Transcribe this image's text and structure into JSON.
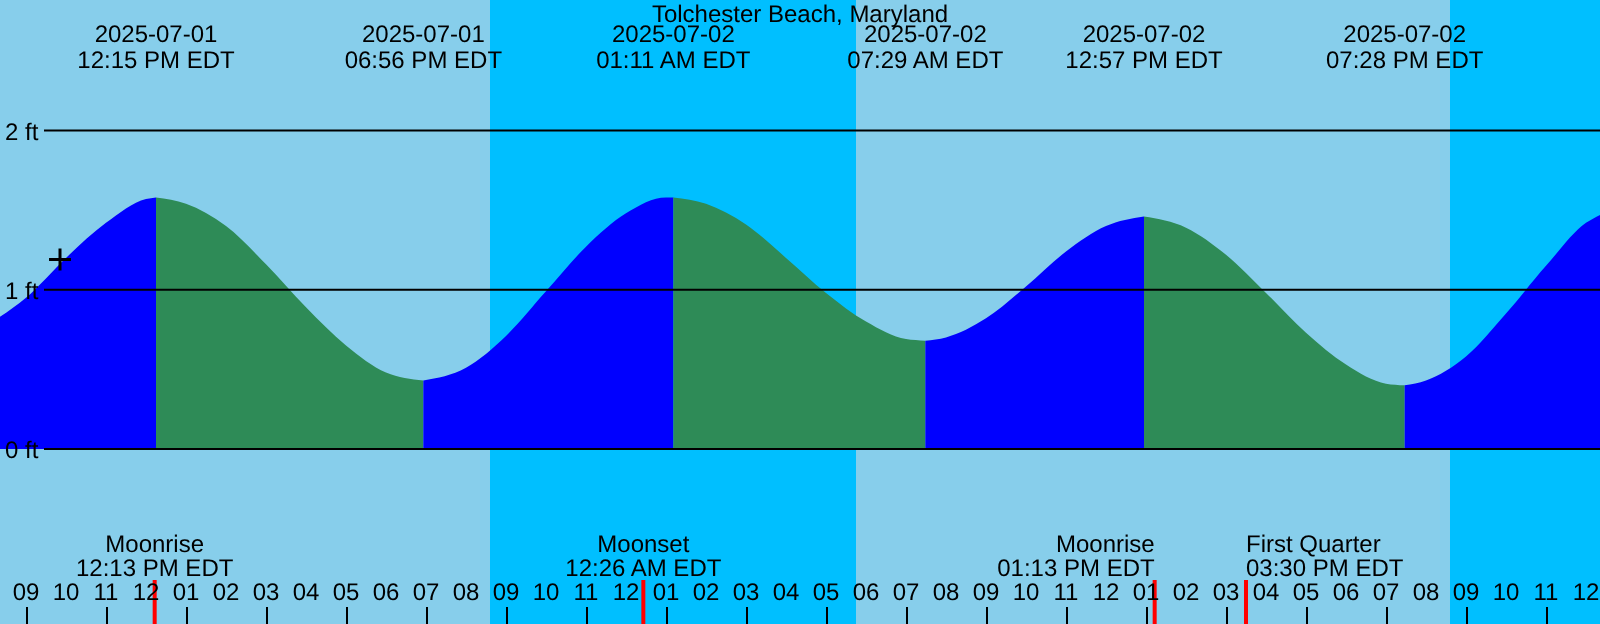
{
  "chart_data": {
    "type": "area",
    "title": "Tolchester Beach, Maryland",
    "series": [
      {
        "color": "#0000ff",
        "x": [
          "2025-07-01T08:21",
          "2025-07-01T09:00",
          "2025-07-01T10:00",
          "2025-07-01T11:00",
          "2025-07-01T12:00",
          "2025-07-01T12:15"
        ],
        "values": [
          0.83,
          0.95,
          1.2,
          1.42,
          1.57,
          1.58
        ]
      },
      {
        "color": "#2e8b57",
        "x": [
          "2025-07-01T12:15",
          "2025-07-01T13:00",
          "2025-07-01T14:00",
          "2025-07-01T15:00",
          "2025-07-01T16:00",
          "2025-07-01T17:00",
          "2025-07-01T18:00",
          "2025-07-01T18:56"
        ],
        "values": [
          1.58,
          1.54,
          1.4,
          1.16,
          0.89,
          0.65,
          0.48,
          0.43
        ]
      },
      {
        "color": "#0000ff",
        "x": [
          "2025-07-01T18:56",
          "2025-07-01T20:00",
          "2025-07-01T21:00",
          "2025-07-01T22:00",
          "2025-07-01T23:00",
          "2025-07-02T00:00",
          "2025-07-02T01:00",
          "2025-07-02T01:11"
        ],
        "values": [
          0.43,
          0.51,
          0.71,
          0.99,
          1.27,
          1.48,
          1.58,
          1.58
        ]
      },
      {
        "color": "#2e8b57",
        "x": [
          "2025-07-02T01:11",
          "2025-07-02T02:00",
          "2025-07-02T03:00",
          "2025-07-02T04:00",
          "2025-07-02T05:00",
          "2025-07-02T06:00",
          "2025-07-02T07:00",
          "2025-07-02T07:29"
        ],
        "values": [
          1.58,
          1.54,
          1.41,
          1.2,
          0.98,
          0.8,
          0.69,
          0.68
        ]
      },
      {
        "color": "#0000ff",
        "x": [
          "2025-07-02T07:29",
          "2025-07-02T08:00",
          "2025-07-02T09:00",
          "2025-07-02T10:00",
          "2025-07-02T11:00",
          "2025-07-02T12:00",
          "2025-07-02T12:57"
        ],
        "values": [
          0.68,
          0.7,
          0.82,
          1.02,
          1.24,
          1.4,
          1.46
        ]
      },
      {
        "color": "#2e8b57",
        "x": [
          "2025-07-02T12:57",
          "2025-07-02T14:00",
          "2025-07-02T15:00",
          "2025-07-02T16:00",
          "2025-07-02T17:00",
          "2025-07-02T18:00",
          "2025-07-02T19:00",
          "2025-07-02T19:28"
        ],
        "values": [
          1.46,
          1.39,
          1.22,
          0.98,
          0.73,
          0.53,
          0.41,
          0.4
        ]
      },
      {
        "color": "#0000ff",
        "x": [
          "2025-07-02T19:28",
          "2025-07-02T20:00",
          "2025-07-02T21:00",
          "2025-07-02T22:00",
          "2025-07-02T23:00",
          "2025-07-03T00:00",
          "2025-07-03T00:21"
        ],
        "values": [
          0.4,
          0.43,
          0.58,
          0.85,
          1.15,
          1.42,
          1.47
        ]
      },
      {
        "type": "scatter",
        "color": "#000000",
        "marker": "cross",
        "x": [
          "2025-07-01T09:51"
        ],
        "values": [
          1.19
        ]
      }
    ],
    "xlim": [
      "2025-07-01T08:21",
      "2025-07-03T00:21"
    ],
    "ylim": [
      -1.1,
      2.82
    ],
    "yticks": [
      {
        "value": 0,
        "label": "0 ft"
      },
      {
        "value": 1,
        "label": "1 ft"
      },
      {
        "value": 2,
        "label": "2 ft"
      }
    ],
    "xticks": [
      {
        "value": "2025-07-01T09:00",
        "label": "09"
      },
      {
        "value": "2025-07-01T10:00",
        "label": "10"
      },
      {
        "value": "2025-07-01T11:00",
        "label": "11"
      },
      {
        "value": "2025-07-01T12:00",
        "label": "12"
      },
      {
        "value": "2025-07-01T13:00",
        "label": "01"
      },
      {
        "value": "2025-07-01T14:00",
        "label": "02"
      },
      {
        "value": "2025-07-01T15:00",
        "label": "03"
      },
      {
        "value": "2025-07-01T16:00",
        "label": "04"
      },
      {
        "value": "2025-07-01T17:00",
        "label": "05"
      },
      {
        "value": "2025-07-01T18:00",
        "label": "06"
      },
      {
        "value": "2025-07-01T19:00",
        "label": "07"
      },
      {
        "value": "2025-07-01T20:00",
        "label": "08"
      },
      {
        "value": "2025-07-01T21:00",
        "label": "09"
      },
      {
        "value": "2025-07-01T22:00",
        "label": "10"
      },
      {
        "value": "2025-07-01T23:00",
        "label": "11"
      },
      {
        "value": "2025-07-02T00:00",
        "label": "12"
      },
      {
        "value": "2025-07-02T01:00",
        "label": "01"
      },
      {
        "value": "2025-07-02T02:00",
        "label": "02"
      },
      {
        "value": "2025-07-02T03:00",
        "label": "03"
      },
      {
        "value": "2025-07-02T04:00",
        "label": "04"
      },
      {
        "value": "2025-07-02T05:00",
        "label": "05"
      },
      {
        "value": "2025-07-02T06:00",
        "label": "06"
      },
      {
        "value": "2025-07-02T07:00",
        "label": "07"
      },
      {
        "value": "2025-07-02T08:00",
        "label": "08"
      },
      {
        "value": "2025-07-02T09:00",
        "label": "09"
      },
      {
        "value": "2025-07-02T10:00",
        "label": "10"
      },
      {
        "value": "2025-07-02T11:00",
        "label": "11"
      },
      {
        "value": "2025-07-02T12:00",
        "label": "12"
      },
      {
        "value": "2025-07-02T13:00",
        "label": "01"
      },
      {
        "value": "2025-07-02T14:00",
        "label": "02"
      },
      {
        "value": "2025-07-02T15:00",
        "label": "03"
      },
      {
        "value": "2025-07-02T16:00",
        "label": "04"
      },
      {
        "value": "2025-07-02T17:00",
        "label": "05"
      },
      {
        "value": "2025-07-02T18:00",
        "label": "06"
      },
      {
        "value": "2025-07-02T19:00",
        "label": "07"
      },
      {
        "value": "2025-07-02T20:00",
        "label": "08"
      },
      {
        "value": "2025-07-02T21:00",
        "label": "09"
      },
      {
        "value": "2025-07-02T22:00",
        "label": "10"
      },
      {
        "value": "2025-07-02T23:00",
        "label": "11"
      },
      {
        "value": "2025-07-03T00:00",
        "label": "12"
      }
    ],
    "grid": "y",
    "bands": [
      {
        "axis": "x",
        "from": "2025-07-01T08:21",
        "to": "2025-07-01T20:36",
        "color": "#87ceeb"
      },
      {
        "axis": "x",
        "from": "2025-07-01T20:36",
        "to": "2025-07-02T05:45",
        "color": "#00bfff"
      },
      {
        "axis": "x",
        "from": "2025-07-02T05:45",
        "to": "2025-07-02T20:36",
        "color": "#87ceeb"
      },
      {
        "axis": "x",
        "from": "2025-07-02T20:36",
        "to": "2025-07-03T00:21",
        "color": "#00bfff"
      }
    ],
    "ref_lines": [
      {
        "axis": "x",
        "value": "2025-07-01T12:13",
        "label": "Moonrise\n12:13 PM EDT",
        "color": "#ff0000"
      },
      {
        "axis": "x",
        "value": "2025-07-02T00:26",
        "label": "Moonset\n12:26 AM EDT",
        "color": "#ff0000"
      },
      {
        "axis": "x",
        "value": "2025-07-02T13:13",
        "label": "Moonrise\n01:13 PM EDT",
        "color": "#ff0000"
      },
      {
        "axis": "x",
        "value": "2025-07-02T15:30",
        "label": "First Quarter\n03:30 PM EDT",
        "color": "#ff0000"
      }
    ],
    "annotations": [
      "2025-07-01\n12:15 PM EDT",
      "2025-07-01\n06:56 PM EDT",
      "2025-07-02\n01:11 AM EDT",
      "2025-07-02\n07:29 AM EDT",
      "2025-07-02\n12:57 PM EDT",
      "2025-07-02\n07:28 PM EDT"
    ]
  }
}
